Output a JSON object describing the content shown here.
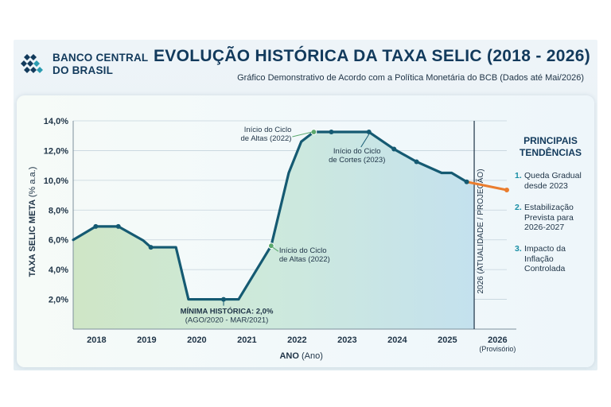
{
  "header": {
    "logo_line1": "BANCO CENTRAL",
    "logo_line2": "DO BRASIL",
    "title": "EVOLUÇÃO HISTÓRICA DA TAXA SELIC (2018 - 2026)",
    "subtitle": "Gráfico Demonstrativo de Acordo com a Política Monetária do BCB (Dados até Mai/2026)"
  },
  "trends": {
    "title_line1": "PRINCIPAIS",
    "title_line2": "TENDÊNCIAS",
    "items": [
      {
        "num": "1.",
        "text": "Queda Gradual desde 2023"
      },
      {
        "num": "2.",
        "text": "Estabilização Prevista para 2026-2027"
      },
      {
        "num": "3.",
        "text": "Impacto da Inflação Controlada"
      }
    ]
  },
  "chart_data": {
    "type": "line",
    "ylabel_main": "TAXA SELIC META",
    "ylabel_unit": "(% a.a.)",
    "xlabel_main": "ANO",
    "xlabel_unit": "(Ano)",
    "ylim": [
      0,
      14
    ],
    "xlim": [
      2017.55,
      2026.2
    ],
    "y_ticks": [
      "2,0%",
      "4,0%",
      "6,0%",
      "8,0%",
      "10,0%",
      "12,0%",
      "14,0%"
    ],
    "y_tick_values": [
      2,
      4,
      6,
      8,
      10,
      12,
      14
    ],
    "x_ticks": [
      "2018",
      "2019",
      "2020",
      "2021",
      "2022",
      "2023",
      "2024",
      "2025",
      "2026"
    ],
    "x_tick_values": [
      2018,
      2019,
      2020,
      2021,
      2022,
      2023,
      2024,
      2025,
      2026
    ],
    "x_tick_note": "(Provisório)",
    "grid": true,
    "series": [
      {
        "color": "#155a72",
        "x": [
          2017.55,
          2018.0,
          2018.45,
          2018.95,
          2019.1,
          2019.6,
          2019.85,
          2020.55,
          2020.85,
          2021.5,
          2021.85,
          2022.1,
          2022.35,
          2022.7,
          2023.3,
          2023.45,
          2023.95,
          2024.4,
          2024.9,
          2025.1,
          2025.4
        ],
        "y": [
          6.0,
          6.9,
          6.9,
          5.95,
          5.5,
          5.5,
          2.0,
          2.0,
          2.0,
          5.6,
          10.5,
          12.6,
          13.25,
          13.25,
          13.25,
          13.25,
          12.1,
          11.25,
          10.5,
          10.5,
          9.9
        ],
        "markers": [
          2018.0,
          2018.45,
          2019.1,
          2020.55,
          2021.5,
          2022.35,
          2022.7,
          2023.45,
          2023.95,
          2024.4,
          2025.4
        ]
      },
      {
        "color": "#ea7d2e",
        "x": [
          2025.4,
          2026.2
        ],
        "y": [
          9.9,
          9.35
        ]
      }
    ],
    "divider_x": 2025.55,
    "divider_label": "2026 (ATUALIDADE / PROJEÇÃO)",
    "annotations": [
      {
        "lines": [
          "Início do Ciclo",
          "de Altas (2022)"
        ],
        "x": 2022.35,
        "y": 13.25
      },
      {
        "lines": [
          "Início do Ciclo",
          "de Cortes (2023)"
        ],
        "x": 2023.45,
        "y": 13.25
      },
      {
        "lines": [
          "Início do Ciclo",
          "de Altas (2022)"
        ],
        "x": 2021.5,
        "y": 5.6
      },
      {
        "lines": [
          "MÍNIMA HISTÓRICA: 2,0%",
          "(AGO/2020 - MAR/2021)"
        ],
        "x": 2020.55,
        "y": 2.0
      }
    ]
  }
}
